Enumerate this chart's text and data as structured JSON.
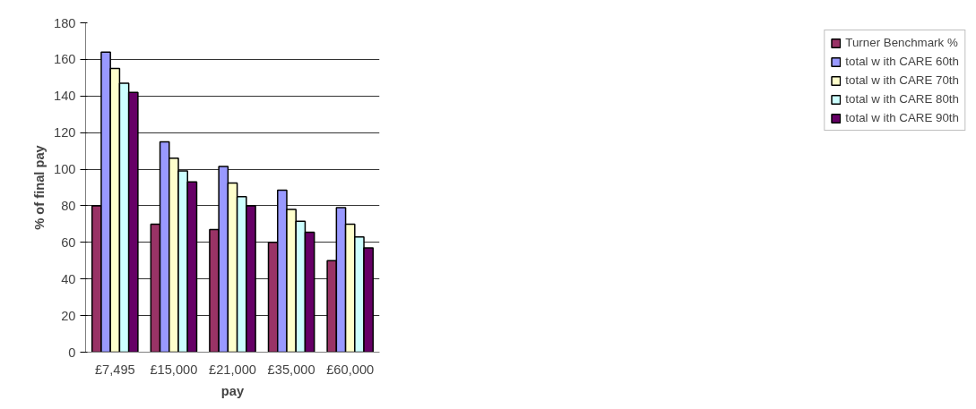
{
  "chart_data": {
    "type": "bar",
    "xlabel": "pay",
    "ylabel": "% of final pay",
    "categories": [
      "£7,495",
      "£15,000",
      "£21,000",
      "£35,000",
      "£60,000"
    ],
    "series": [
      {
        "name": "Turner Benchmark %",
        "color": "#993366",
        "values": [
          80,
          70,
          67,
          60,
          50
        ]
      },
      {
        "name": "total w ith CARE 60th",
        "color": "#9999ff",
        "values": [
          164,
          115,
          101.5,
          88.5,
          79
        ]
      },
      {
        "name": "total w ith CARE 70th",
        "color": "#ffffcc",
        "values": [
          155,
          106,
          92.5,
          78,
          70
        ]
      },
      {
        "name": "total w ith CARE 80th",
        "color": "#ccffff",
        "values": [
          147,
          99,
          85,
          71.5,
          63
        ]
      },
      {
        "name": "total w ith CARE 90th",
        "color": "#660066",
        "values": [
          142,
          93,
          80,
          65.5,
          57
        ]
      }
    ],
    "ylim": [
      0,
      180
    ],
    "yticks": [
      0,
      20,
      40,
      60,
      80,
      100,
      120,
      140,
      160,
      180
    ],
    "grid": "y",
    "legend": "right"
  }
}
